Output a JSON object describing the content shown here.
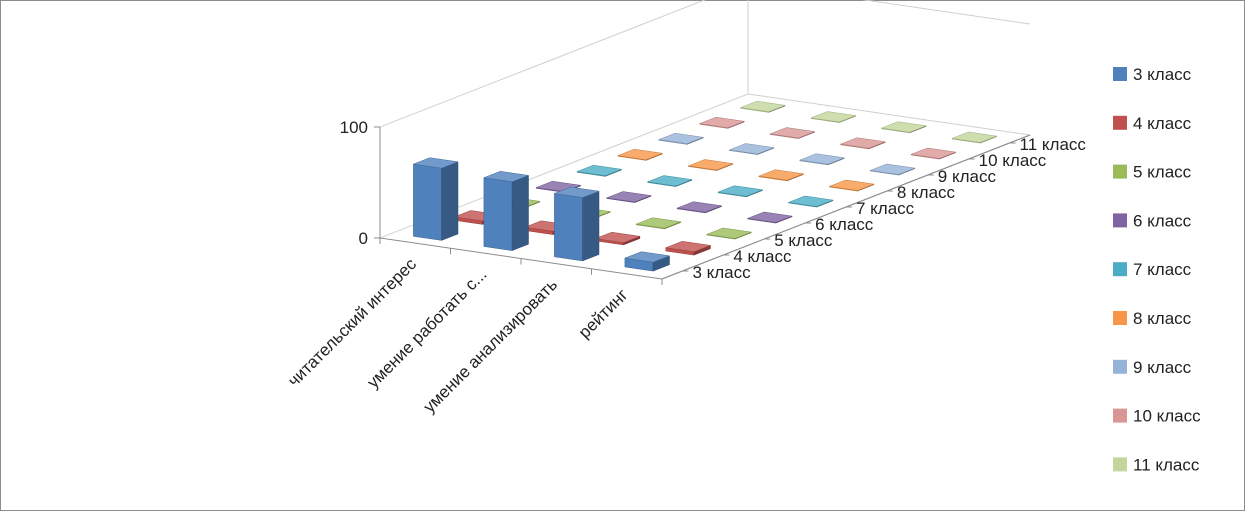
{
  "chart_data": {
    "type": "bar",
    "categories": [
      "читательский интерес",
      "умение работать с...",
      "умение анализировать",
      "рейтинг"
    ],
    "series": [
      {
        "name": "3 класс",
        "color": "#4f81bd",
        "values": [
          65,
          62,
          57,
          8
        ]
      },
      {
        "name": "4 класс",
        "color": "#c0504d",
        "values": [
          3,
          3,
          2,
          3
        ]
      },
      {
        "name": "5 класс",
        "color": "#9bbb59",
        "values": [
          0,
          0,
          0,
          0
        ]
      },
      {
        "name": "6 класс",
        "color": "#8064a2",
        "values": [
          0,
          0,
          0,
          0
        ]
      },
      {
        "name": "7 класс",
        "color": "#4bacc6",
        "values": [
          0,
          0,
          0,
          0
        ]
      },
      {
        "name": "8 класс",
        "color": "#f79646",
        "values": [
          0,
          0,
          0,
          0
        ]
      },
      {
        "name": "9 класс",
        "color": "#95b3d7",
        "values": [
          0,
          0,
          0,
          0
        ]
      },
      {
        "name": "10 класс",
        "color": "#d99694",
        "values": [
          0,
          0,
          0,
          0
        ]
      },
      {
        "name": "11 класс",
        "color": "#c3d69b",
        "values": [
          0,
          0,
          0,
          0
        ]
      }
    ],
    "yticks": [
      0,
      100
    ],
    "ylim": [
      0,
      100
    ],
    "legend_position": "right",
    "projection": "3d"
  }
}
